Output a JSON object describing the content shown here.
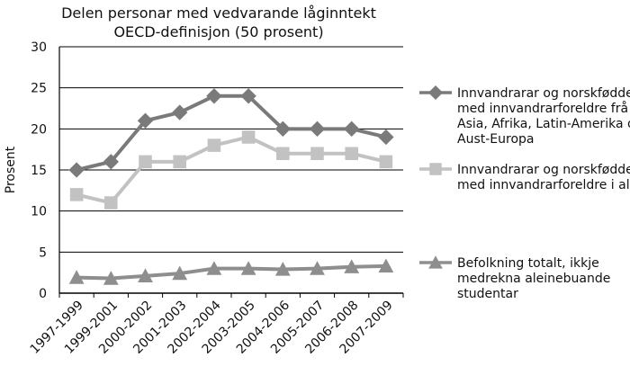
{
  "chart_data": {
    "type": "line",
    "title": [
      "Delen personar med vedvarande låginntekt",
      "OECD-definisjon (50 prosent)"
    ],
    "ylabel": "Prosent",
    "xlabel": "",
    "categories": [
      "1997-1999",
      "1999-2001",
      "2000-2002",
      "2001-2003",
      "2002-2004",
      "2003-2005",
      "2004-2006",
      "2005-2007",
      "2006-2008",
      "2007-2009"
    ],
    "ylim": [
      0,
      30
    ],
    "yticks": [
      "0",
      "5",
      "10",
      "15",
      "20",
      "25",
      "30"
    ],
    "grid": "horizontal",
    "legend_position": "right",
    "series": [
      {
        "name_lines": [
          "Innvandrarar og norskfødde",
          "med innvandrarforeldre frå",
          "Asia, Afrika, Latin-Amerika og",
          "Aust-Europa"
        ],
        "values": [
          15,
          16,
          21,
          22,
          24,
          24,
          20,
          20,
          20,
          19
        ],
        "color": "#7a7a7a",
        "marker": "diamond"
      },
      {
        "name_lines": [
          "Innvandrarar og norskfødde",
          "med innvandrarforeldre i alt"
        ],
        "values": [
          12,
          11,
          16,
          16,
          18,
          19,
          17,
          17,
          17,
          16
        ],
        "color": "#c2c2c2",
        "marker": "square"
      },
      {
        "name_lines": [
          "Befolkning totalt, ikkje",
          "medrekna aleinebuande",
          "studentar"
        ],
        "values": [
          1.9,
          1.8,
          2.1,
          2.4,
          3.0,
          3.0,
          2.9,
          3.0,
          3.2,
          3.3
        ],
        "color": "#8e8e8e",
        "marker": "triangle"
      }
    ]
  }
}
